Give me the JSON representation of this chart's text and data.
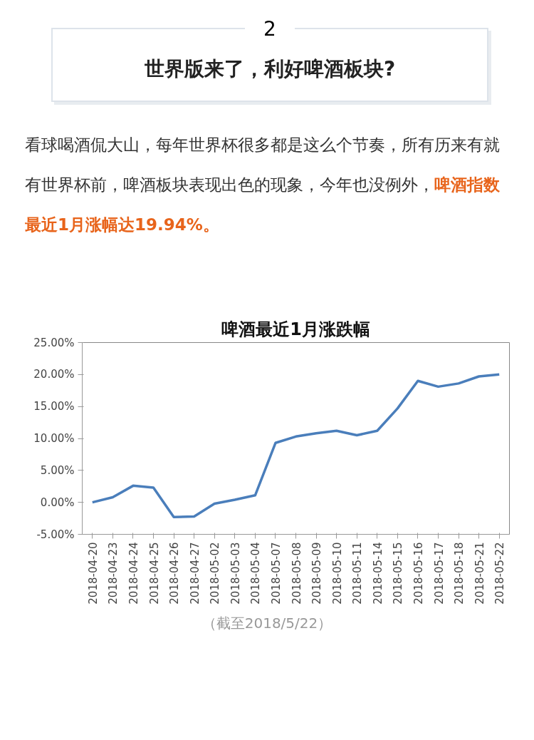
{
  "chart_data": {
    "type": "line",
    "title": "啤酒最近1月涨跌幅",
    "annotations": [
      "2",
      "世界版来了，利好啤酒板块?",
      "看球喝酒侃大山，每年世界杯很多都是这么个节奏，所有历来有就有世界杯前，啤酒板块表现出色的现象，今年也没例外，",
      "啤酒指数最近1月涨幅达19.94%。",
      "（截至2018/5/22）"
    ],
    "categories": [
      "2018-04-20",
      "2018-04-23",
      "2018-04-24",
      "2018-04-25",
      "2018-04-26",
      "2018-04-27",
      "2018-05-02",
      "2018-05-03",
      "2018-05-04",
      "2018-05-07",
      "2018-05-08",
      "2018-05-09",
      "2018-05-10",
      "2018-05-11",
      "2018-05-14",
      "2018-05-15",
      "2018-05-16",
      "2018-05-17",
      "2018-05-18",
      "2018-05-21",
      "2018-05-22"
    ],
    "series": [
      {
        "color": "#4a7ebb",
        "values": [
          0,
          0.8,
          2.6,
          2.3,
          -2.3,
          -2.2,
          -0.2,
          0.4,
          1.1,
          9.3,
          10.3,
          10.8,
          11.2,
          10.5,
          11.2,
          14.7,
          19.0,
          18.1,
          18.6,
          19.7,
          20.0
        ]
      }
    ],
    "ylim": [
      -5,
      25
    ],
    "yticks": [
      {
        "value": -5,
        "label": "-5.00%"
      },
      {
        "value": 0,
        "label": "0.00%"
      },
      {
        "value": 5,
        "label": "5.00%"
      },
      {
        "value": 10,
        "label": "10.00%"
      },
      {
        "value": 15,
        "label": "15.00%"
      },
      {
        "value": 20,
        "label": "20.00%"
      },
      {
        "value": 25,
        "label": "25.00%"
      }
    ],
    "grid": false,
    "marker": "none",
    "line_style": "solid"
  }
}
